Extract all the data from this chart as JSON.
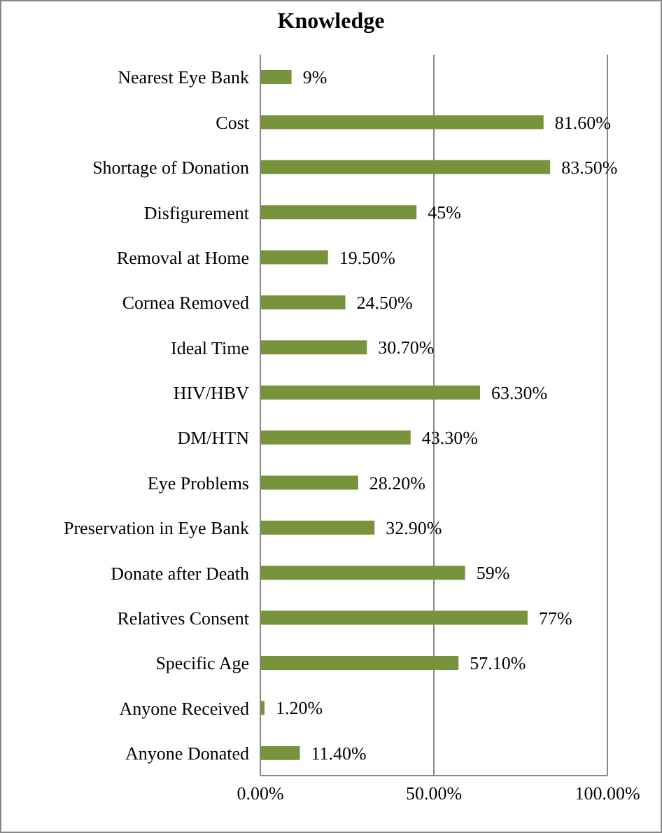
{
  "chart_data": {
    "type": "bar",
    "orientation": "horizontal",
    "title": "Knowledge",
    "categories": [
      "Nearest Eye Bank",
      "Cost",
      "Shortage of Donation",
      "Disfigurement",
      "Removal at Home",
      "Cornea Removed",
      "Ideal Time",
      "HIV/HBV",
      "DM/HTN",
      "Eye Problems",
      "Preservation in Eye Bank",
      "Donate after Death",
      "Relatives Consent",
      "Specific Age",
      "Anyone Received",
      "Anyone Donated"
    ],
    "values": [
      9,
      81.6,
      83.5,
      45,
      19.5,
      24.5,
      30.7,
      63.3,
      43.3,
      28.2,
      32.9,
      59,
      77,
      57.1,
      1.2,
      11.4
    ],
    "value_labels": [
      "9%",
      "81.60%",
      "83.50%",
      "45%",
      "19.50%",
      "24.50%",
      "30.70%",
      "63.30%",
      "43.30%",
      "28.20%",
      "32.90%",
      "59%",
      "77%",
      "57.10%",
      "1.20%",
      "11.40%"
    ],
    "color": "#77933c",
    "xlim": [
      0,
      100
    ],
    "xticks": [
      {
        "value": 0,
        "label": "0.00%"
      },
      {
        "value": 50,
        "label": "50.00%"
      },
      {
        "value": 100,
        "label": "100.00%"
      }
    ],
    "grid": "x",
    "legend": false
  }
}
